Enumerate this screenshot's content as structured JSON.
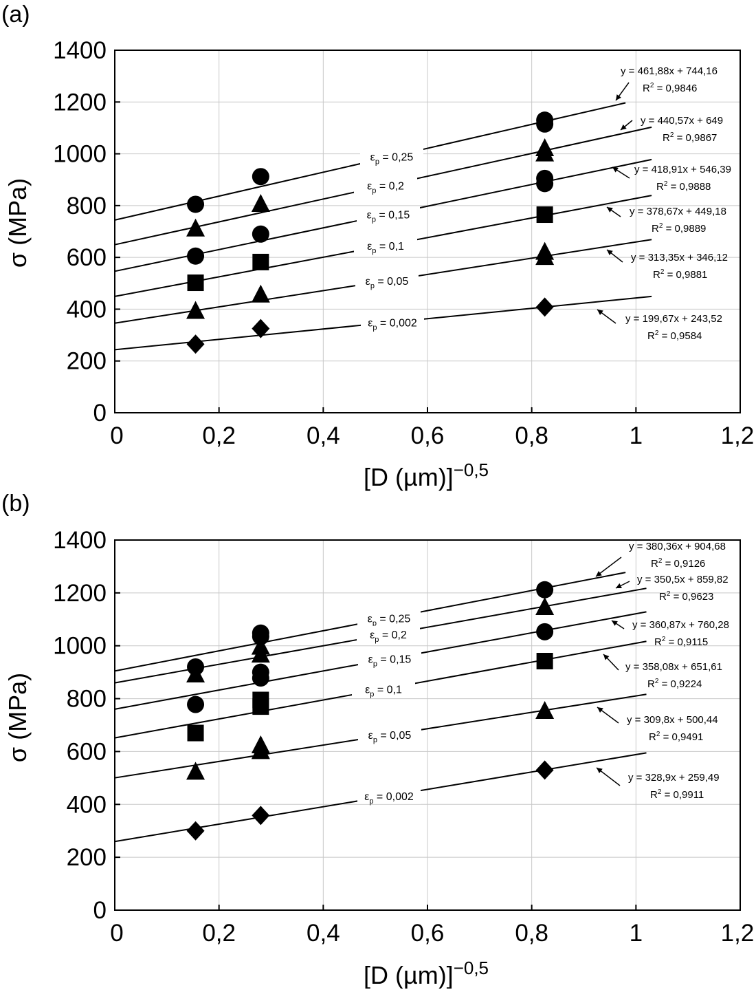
{
  "chart_data": [
    {
      "panel_label": "(a)",
      "type": "scatter",
      "xlabel": "[D (µm)]",
      "xlabel_exponent": "−0,5",
      "ylabel": "σ (MPa)",
      "xlim": [
        0,
        1.2
      ],
      "ylim": [
        0,
        1400
      ],
      "x_ticks": [
        "0",
        "0,2",
        "0,4",
        "0,6",
        "0,8",
        "1",
        "1,2"
      ],
      "y_ticks": [
        "0",
        "200",
        "400",
        "600",
        "800",
        "1000",
        "1200",
        "1400"
      ],
      "grid": true,
      "series": [
        {
          "strain": "0,25",
          "marker": "circle",
          "x": [
            0.155,
            0.28,
            0.825,
            0.825
          ],
          "y": [
            805,
            912,
            1115,
            1130
          ],
          "fit": {
            "slope": 461.88,
            "intercept": 744.16,
            "x_end": 0.98
          },
          "equation": "y = 461,88x + 744,16",
          "r2": "0,9846"
        },
        {
          "strain": "0,2",
          "marker": "triangle",
          "x": [
            0.155,
            0.28,
            0.825,
            0.825
          ],
          "y": [
            710,
            805,
            1000,
            1020
          ],
          "fit": {
            "slope": 440.57,
            "intercept": 649,
            "x_end": 1.03
          },
          "equation": "y = 440,57x + 649",
          "r2": "0,9867"
        },
        {
          "strain": "0,15",
          "marker": "circle",
          "x": [
            0.155,
            0.28,
            0.825,
            0.825
          ],
          "y": [
            605,
            690,
            885,
            905
          ],
          "fit": {
            "slope": 418.91,
            "intercept": 546.39,
            "x_end": 1.03
          },
          "equation": "y = 418,91x + 546,39",
          "r2": "0,9888"
        },
        {
          "strain": "0,1",
          "marker": "square",
          "x": [
            0.155,
            0.28,
            0.825
          ],
          "y": [
            502,
            582,
            765
          ],
          "fit": {
            "slope": 378.67,
            "intercept": 449.18,
            "x_end": 1.03
          },
          "equation": "y = 378,67x + 449,18",
          "r2": "0,9889"
        },
        {
          "strain": "0,05",
          "marker": "triangle",
          "x": [
            0.155,
            0.28,
            0.825,
            0.825
          ],
          "y": [
            392,
            455,
            600,
            620
          ],
          "fit": {
            "slope": 313.35,
            "intercept": 346.12,
            "x_end": 1.03
          },
          "equation": "y = 313,35x + 346,12",
          "r2": "0,9881"
        },
        {
          "strain": "0,002",
          "marker": "diamond",
          "x": [
            0.155,
            0.28,
            0.825
          ],
          "y": [
            265,
            325,
            408
          ],
          "fit": {
            "slope": 199.67,
            "intercept": 243.52,
            "x_end": 1.03
          },
          "equation": "y = 199,67x + 243,52",
          "r2": "0,9584"
        }
      ]
    },
    {
      "panel_label": "(b)",
      "type": "scatter",
      "xlabel": "[D (µm)]",
      "xlabel_exponent": "−0,5",
      "ylabel": "σ (MPa)",
      "xlim": [
        0,
        1.2
      ],
      "ylim": [
        0,
        1400
      ],
      "x_ticks": [
        "0",
        "0,2",
        "0,4",
        "0,6",
        "0,8",
        "1",
        "1,2"
      ],
      "y_ticks": [
        "0",
        "200",
        "400",
        "600",
        "800",
        "1000",
        "1200",
        "1400"
      ],
      "grid": true,
      "series": [
        {
          "strain": "0,25",
          "marker": "circle",
          "x": [
            0.155,
            0.28,
            0.28,
            0.825
          ],
          "y": [
            920,
            1035,
            1048,
            1212
          ],
          "fit": {
            "slope": 380.36,
            "intercept": 904.68,
            "x_end": 0.98
          },
          "equation": "y = 380,36x + 904,68",
          "r2": "0,9126"
        },
        {
          "strain": "0,2",
          "marker": "triangle",
          "x": [
            0.155,
            0.28,
            0.28,
            0.825
          ],
          "y": [
            890,
            965,
            995,
            1145
          ],
          "fit": {
            "slope": 350.5,
            "intercept": 859.82,
            "x_end": 1.02
          },
          "equation": "y = 350,5x + 859,82",
          "r2": "0,9623"
        },
        {
          "strain": "0,15",
          "marker": "circle",
          "x": [
            0.155,
            0.28,
            0.28,
            0.825
          ],
          "y": [
            778,
            878,
            900,
            1053
          ],
          "fit": {
            "slope": 360.87,
            "intercept": 760.28,
            "x_end": 1.02
          },
          "equation": "y = 360,87x + 760,28",
          "r2": "0,9115"
        },
        {
          "strain": "0,1",
          "marker": "square",
          "x": [
            0.155,
            0.28,
            0.28,
            0.825
          ],
          "y": [
            670,
            770,
            795,
            942
          ],
          "fit": {
            "slope": 358.08,
            "intercept": 651.61,
            "x_end": 1.02
          },
          "equation": "y = 358,08x + 651,61",
          "r2": "0,9224"
        },
        {
          "strain": "0,05",
          "marker": "triangle",
          "x": [
            0.155,
            0.28,
            0.28,
            0.825
          ],
          "y": [
            522,
            600,
            622,
            752
          ],
          "fit": {
            "slope": 309.8,
            "intercept": 500.44,
            "x_end": 1.02
          },
          "equation": "y = 309,8x + 500,44",
          "r2": "0,9491"
        },
        {
          "strain": "0,002",
          "marker": "diamond",
          "x": [
            0.155,
            0.28,
            0.825
          ],
          "y": [
            300,
            358,
            530
          ],
          "fit": {
            "slope": 328.9,
            "intercept": 259.49,
            "x_end": 1.02
          },
          "equation": "y = 328,9x + 259,49",
          "r2": "0,9911"
        }
      ]
    }
  ]
}
